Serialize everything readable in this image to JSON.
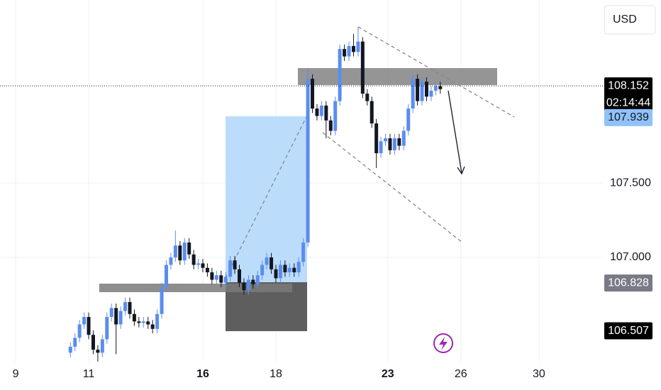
{
  "chart_data": {
    "type": "candlestick",
    "currency": "USD",
    "x": [
      12,
      13,
      14,
      15,
      16,
      17,
      18,
      19,
      20,
      21,
      22,
      23,
      24,
      25,
      26,
      27,
      28,
      29,
      30,
      31,
      32,
      33,
      34,
      35,
      36,
      37,
      38,
      39,
      40,
      41,
      42,
      43,
      44,
      45,
      46,
      47,
      48,
      49,
      50,
      51,
      52,
      53,
      54,
      55,
      56,
      57,
      58,
      59,
      60,
      61,
      62,
      63,
      64,
      65,
      66,
      67,
      68,
      69,
      70,
      71,
      72,
      73,
      74,
      75,
      76,
      77,
      78,
      79,
      80,
      81,
      82,
      83,
      84,
      85,
      86,
      87,
      88,
      89,
      90,
      91,
      92,
      93
    ],
    "open": [
      106.36,
      106.4,
      106.46,
      106.55,
      106.6,
      106.48,
      106.38,
      106.36,
      106.45,
      106.6,
      106.66,
      106.55,
      106.64,
      106.7,
      106.62,
      106.57,
      106.56,
      106.57,
      106.55,
      106.52,
      106.62,
      106.8,
      106.95,
      107.0,
      107.08,
      106.98,
      107.1,
      107.02,
      106.95,
      106.96,
      106.93,
      106.9,
      106.85,
      106.88,
      106.83,
      106.87,
      106.98,
      106.92,
      106.83,
      106.78,
      106.85,
      106.82,
      106.88,
      106.95,
      107.0,
      106.92,
      106.86,
      106.95,
      106.9,
      106.93,
      106.9,
      106.97,
      107.1,
      108.2,
      108.0,
      107.95,
      108.02,
      107.92,
      107.85,
      108.05,
      108.4,
      108.35,
      108.42,
      108.38,
      108.45,
      108.1,
      108.05,
      107.9,
      107.7,
      107.78,
      107.8,
      107.72,
      107.8,
      107.75,
      107.85,
      108.0,
      108.2,
      108.05,
      108.18,
      108.08,
      108.12,
      108.15
    ],
    "high": [
      106.43,
      106.49,
      106.58,
      106.63,
      106.63,
      106.51,
      106.41,
      106.48,
      106.63,
      106.69,
      106.69,
      106.67,
      106.73,
      106.73,
      106.65,
      106.6,
      106.6,
      106.6,
      106.58,
      106.65,
      106.83,
      106.98,
      107.03,
      107.18,
      107.11,
      107.13,
      107.13,
      107.05,
      106.99,
      106.99,
      106.96,
      106.93,
      106.91,
      106.91,
      106.9,
      107.01,
      107.01,
      106.95,
      106.86,
      106.88,
      106.88,
      106.91,
      106.98,
      107.03,
      107.03,
      106.95,
      106.98,
      106.98,
      106.96,
      106.96,
      107.0,
      107.13,
      108.27,
      108.23,
      108.03,
      108.05,
      108.05,
      107.95,
      108.08,
      108.43,
      108.43,
      108.45,
      108.5,
      108.55,
      108.48,
      108.13,
      108.08,
      107.93,
      107.81,
      107.83,
      107.83,
      107.83,
      107.83,
      107.88,
      108.03,
      108.23,
      108.23,
      108.21,
      108.21,
      108.15,
      108.18,
      108.18
    ],
    "low": [
      106.33,
      106.37,
      106.43,
      106.52,
      106.45,
      106.35,
      106.3,
      106.33,
      106.42,
      106.57,
      106.35,
      106.52,
      106.61,
      106.59,
      106.54,
      106.53,
      106.53,
      106.52,
      106.49,
      106.49,
      106.59,
      106.77,
      106.92,
      106.97,
      106.95,
      106.95,
      106.99,
      106.92,
      106.92,
      106.9,
      106.87,
      106.82,
      106.82,
      106.8,
      106.8,
      106.84,
      106.89,
      106.8,
      106.75,
      106.75,
      106.79,
      106.79,
      106.85,
      106.92,
      106.89,
      106.83,
      106.83,
      106.87,
      106.87,
      106.87,
      106.87,
      106.94,
      107.07,
      107.97,
      107.92,
      107.92,
      107.8,
      107.82,
      107.82,
      108.02,
      108.32,
      108.32,
      108.35,
      108.35,
      108.07,
      108.02,
      107.87,
      107.6,
      107.67,
      107.75,
      107.69,
      107.69,
      107.72,
      107.72,
      107.82,
      107.97,
      108.02,
      108.02,
      108.05,
      108.05,
      108.09,
      108.1
    ],
    "close": [
      106.4,
      106.46,
      106.55,
      106.6,
      106.48,
      106.38,
      106.36,
      106.45,
      106.6,
      106.66,
      106.55,
      106.64,
      106.7,
      106.62,
      106.57,
      106.56,
      106.57,
      106.55,
      106.52,
      106.62,
      106.8,
      106.95,
      107.0,
      107.08,
      106.98,
      107.1,
      107.02,
      106.95,
      106.96,
      106.93,
      106.9,
      106.85,
      106.88,
      106.83,
      106.87,
      106.98,
      106.92,
      106.83,
      106.78,
      106.85,
      106.82,
      106.88,
      106.95,
      107.0,
      106.92,
      106.86,
      106.95,
      106.9,
      106.93,
      106.9,
      106.97,
      107.1,
      108.2,
      108.0,
      107.95,
      108.02,
      107.92,
      107.85,
      108.05,
      108.4,
      108.35,
      108.42,
      108.38,
      108.45,
      108.1,
      108.05,
      107.9,
      107.7,
      107.78,
      107.8,
      107.72,
      107.8,
      107.75,
      107.85,
      108.0,
      108.2,
      108.05,
      108.18,
      108.08,
      108.12,
      108.15,
      108.13
    ],
    "up_color": "#5b8def",
    "down_color": "#131722",
    "xlim": [
      -3.42,
      128.6
    ],
    "xticks": [
      {
        "value": 0,
        "label": "9"
      },
      {
        "value": 16,
        "label": "11"
      },
      {
        "value": 41,
        "label": "16",
        "bold": true
      },
      {
        "value": 57,
        "label": "18"
      },
      {
        "value": 81.5,
        "label": "23",
        "bold": true
      },
      {
        "value": 97.5,
        "label": "26"
      },
      {
        "value": 114.6,
        "label": "30"
      }
    ],
    "ylim": [
      106.3,
      108.729
    ],
    "yticks": [
      {
        "value": 107.5,
        "label": "107.500"
      },
      {
        "value": 107.0,
        "label": "107.000"
      }
    ],
    "grid": true,
    "current_price": 108.152,
    "countdown": "02:14:44",
    "price_labels": [
      {
        "value": 107.939,
        "color": "#90c2f9",
        "text_color": "#131722"
      },
      {
        "value": 106.828,
        "color": "#787b86",
        "text_color": "#ffffff"
      },
      {
        "value": 106.507,
        "color": "#000000",
        "text_color": "#ffffff"
      }
    ]
  }
}
